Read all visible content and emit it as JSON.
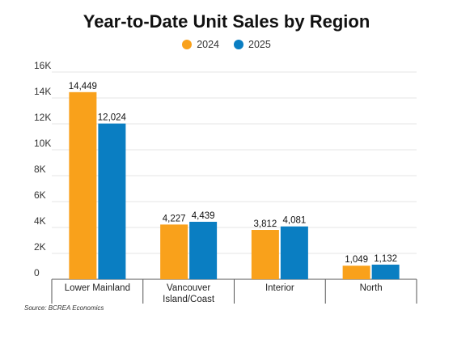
{
  "chart_data": {
    "type": "bar",
    "title": "Year-to-Date Unit Sales by Region",
    "categories": [
      "Lower Mainland",
      "Vancouver\nIsland/Coast",
      "Interior",
      "North"
    ],
    "series": [
      {
        "name": "2024",
        "color": "#F9A11B",
        "values": [
          14449,
          4227,
          3812,
          1049
        ],
        "labels": [
          "14,449",
          "4,227",
          "3,812",
          "1,049"
        ]
      },
      {
        "name": "2025",
        "color": "#0A7EC2",
        "values": [
          12024,
          4439,
          4081,
          1132
        ],
        "labels": [
          "12,024",
          "4,439",
          "4,081",
          "1,132"
        ]
      }
    ],
    "ylim": [
      0,
      16000
    ],
    "yticks": [
      0,
      2000,
      4000,
      6000,
      8000,
      10000,
      12000,
      14000,
      16000
    ],
    "ytick_labels": [
      "0",
      "2K",
      "4K",
      "6K",
      "8K",
      "10K",
      "12K",
      "14K",
      "16K"
    ],
    "grid": true,
    "legend": "top-center",
    "source": "Source: BCREA Economics"
  }
}
